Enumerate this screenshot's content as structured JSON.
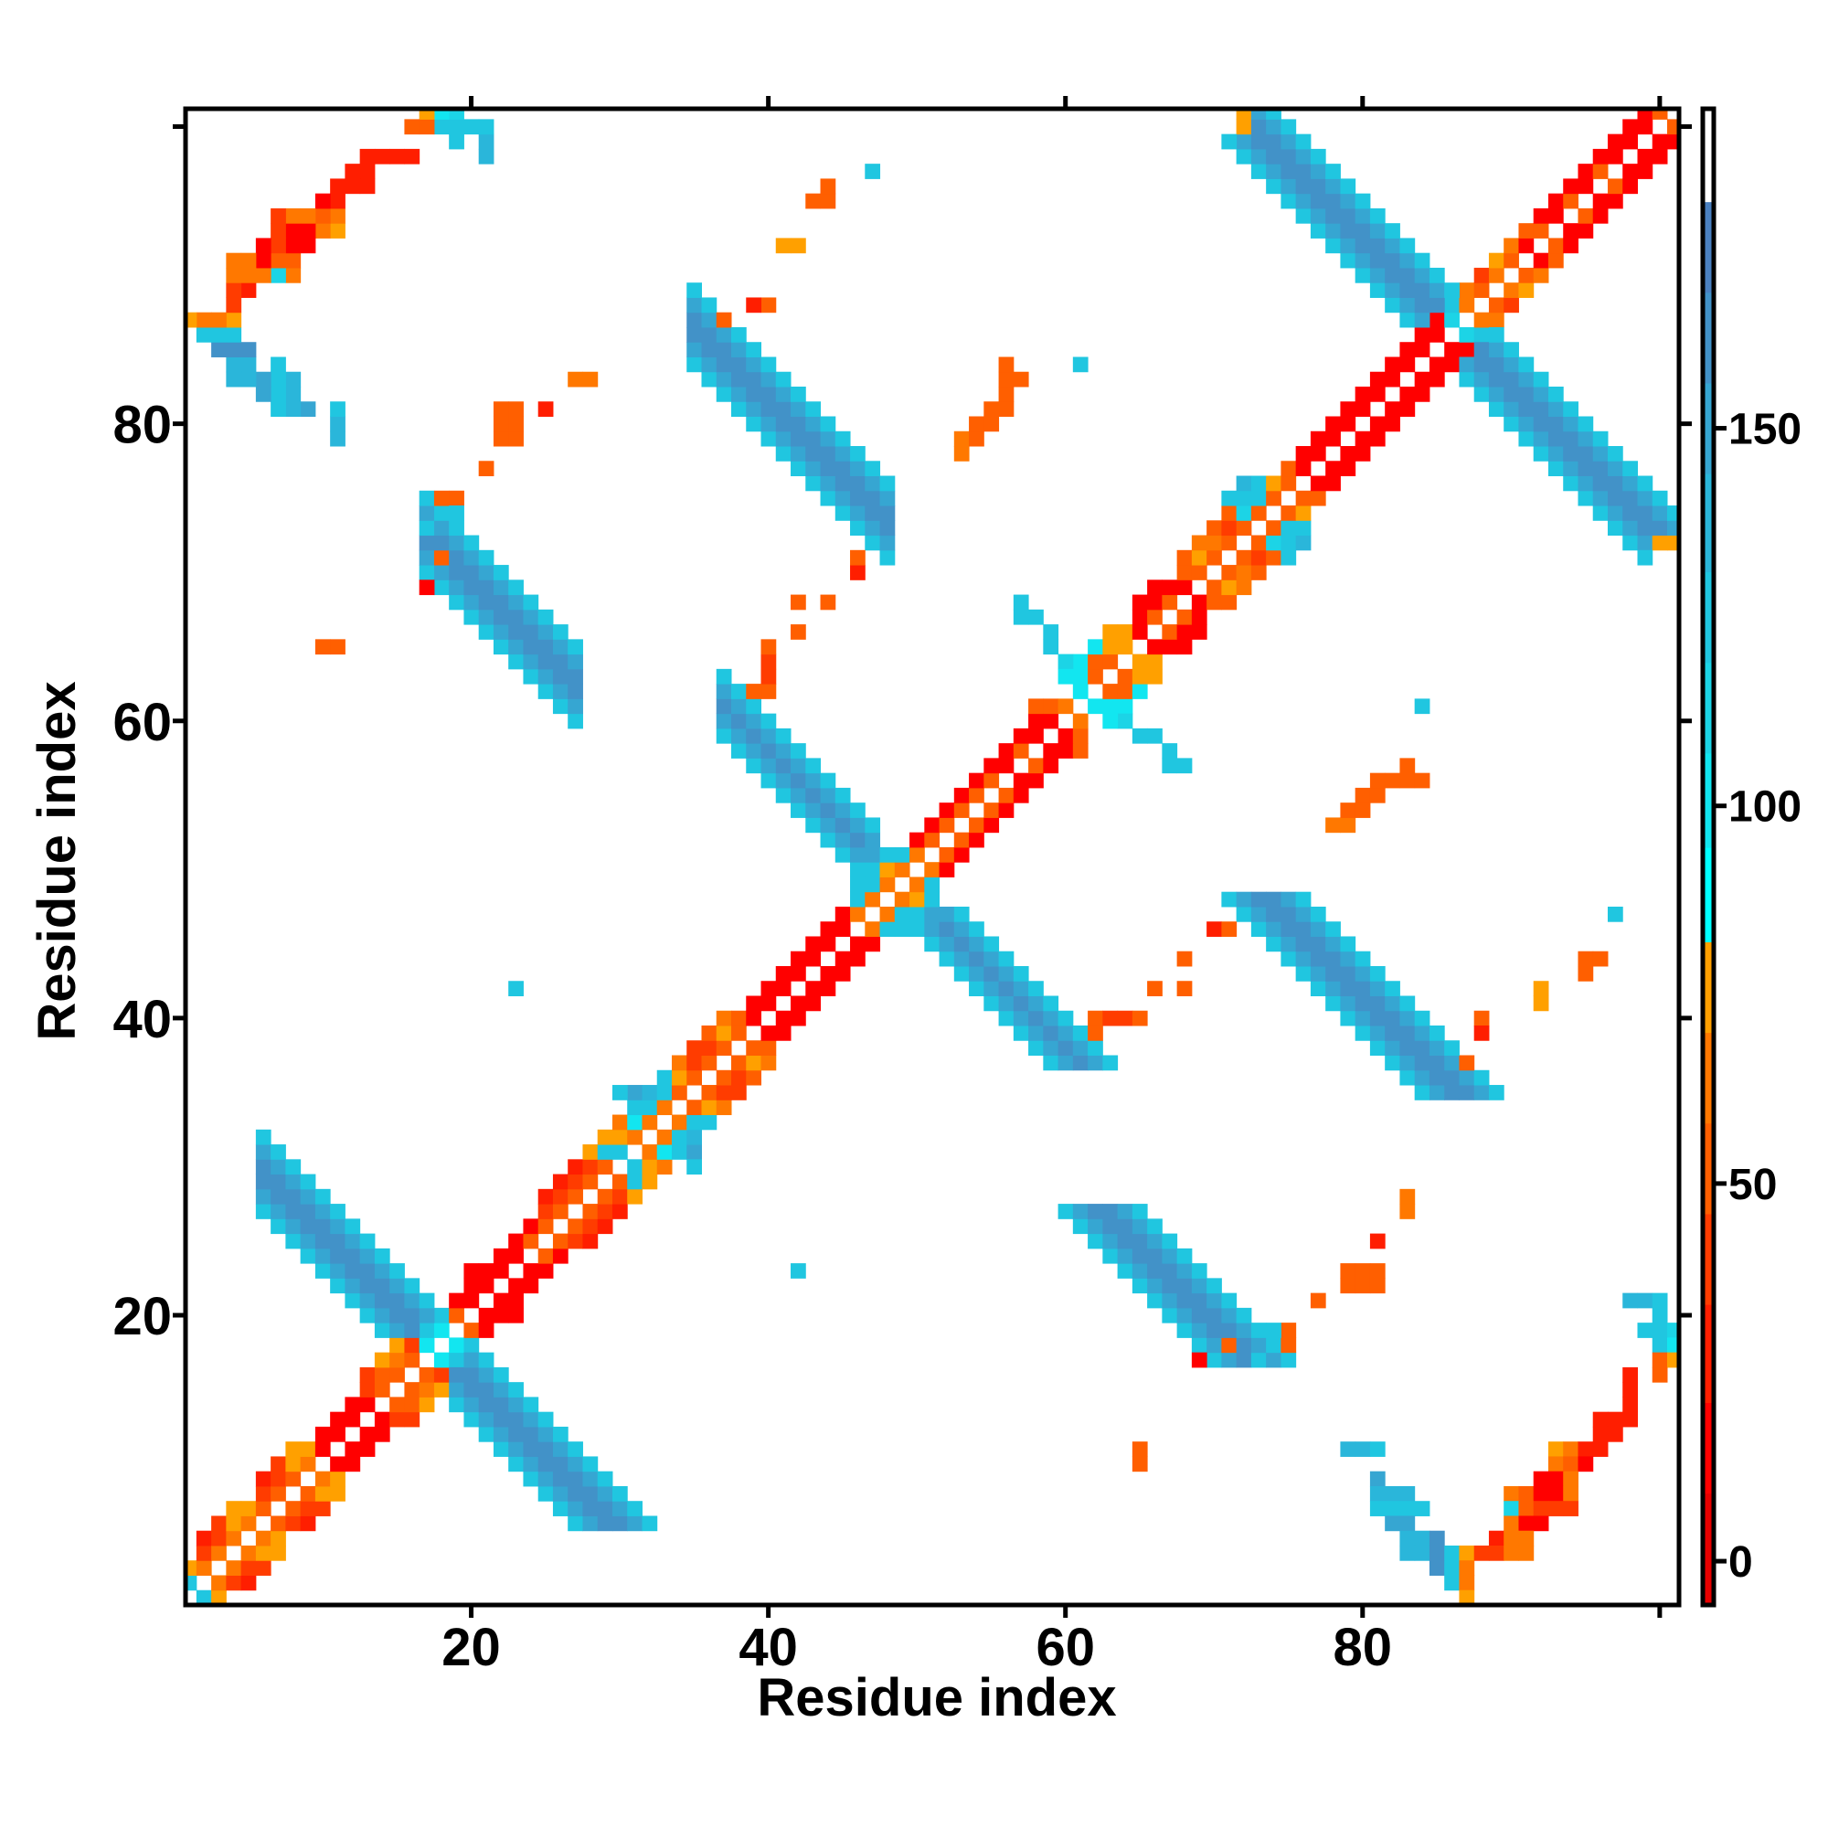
{
  "chart_data": {
    "type": "heatmap",
    "title": "",
    "xlabel": "Residue index",
    "ylabel": "Residue index",
    "xlim": [
      0.77,
      101.3
    ],
    "ylim": [
      0.5,
      101.2
    ],
    "tick_values": [
      20,
      40,
      60,
      80,
      100
    ],
    "xtick_labels": [
      "20",
      "40",
      "60",
      "80"
    ],
    "ytick_labels": [
      "20",
      "40",
      "60",
      "80"
    ],
    "grid": false,
    "symmetric": true,
    "colorbar": {
      "range": [
        -5.8,
        192.3
      ],
      "ticks": [
        0,
        50,
        100,
        150
      ],
      "labels": [
        "0",
        "50",
        "100",
        "150"
      ],
      "placement": "right",
      "bands": [
        [
          -5.8,
          9,
          "#e80000"
        ],
        [
          9,
          21,
          "#ff0000"
        ],
        [
          21,
          34,
          "#ff1e00"
        ],
        [
          34,
          46,
          "#ff3c00"
        ],
        [
          46,
          58,
          "#ff5f00"
        ],
        [
          58,
          70,
          "#ff7800"
        ],
        [
          70,
          82,
          "#ffa000"
        ],
        [
          82,
          94.5,
          "#00ffff"
        ],
        [
          94.5,
          107,
          "#12e6f0"
        ],
        [
          107,
          119,
          "#1cd4e6"
        ],
        [
          119,
          131,
          "#20c6e0"
        ],
        [
          131,
          144,
          "#2ab6da"
        ],
        [
          144,
          156,
          "#36a6d2"
        ],
        [
          156,
          168,
          "#4292c8"
        ],
        [
          168,
          180,
          "#4a80c0"
        ],
        [
          180,
          192.3,
          "#ffffff"
        ]
      ]
    },
    "diagonal": [
      [
        1,
        [
          120,
          70
        ]
      ],
      [
        2,
        [
          60,
          45,
          25
        ]
      ],
      [
        3,
        [
          60,
          45,
          45
        ]
      ],
      [
        4,
        [
          60,
          70,
          70
        ]
      ],
      [
        5,
        [
          60,
          70
        ]
      ],
      [
        6,
        [
          55,
          45,
          30
        ]
      ],
      [
        7,
        [
          55,
          45,
          45
        ]
      ],
      [
        8,
        [
          55,
          70,
          70
        ]
      ],
      [
        9,
        [
          60,
          70
        ]
      ],
      [
        10,
        [
          15,
          20
        ]
      ],
      [
        11,
        [
          15,
          20
        ]
      ],
      [
        12,
        [
          15,
          20
        ]
      ],
      [
        13,
        [
          15,
          40,
          40
        ]
      ],
      [
        14,
        [
          50,
          55,
          70
        ]
      ],
      [
        15,
        [
          55,
          65,
          70
        ]
      ],
      [
        16,
        [
          55,
          45
        ]
      ],
      [
        17,
        [
          100,
          120
        ]
      ],
      [
        18,
        [
          100,
          120
        ]
      ],
      [
        19,
        [
          55,
          15
        ]
      ],
      [
        20,
        [
          10,
          15,
          20
        ]
      ],
      [
        21,
        [
          10,
          15
        ]
      ],
      [
        22,
        [
          10,
          10
        ]
      ],
      [
        23,
        [
          10,
          15
        ]
      ],
      [
        24,
        [
          55,
          20
        ]
      ],
      [
        25,
        [
          55,
          45,
          30
        ]
      ],
      [
        26,
        [
          55,
          45,
          30
        ]
      ],
      [
        27,
        [
          55,
          45,
          25
        ]
      ],
      [
        28,
        [
          55,
          45,
          70
        ]
      ],
      [
        29,
        [
          55,
          120,
          70
        ]
      ],
      [
        30,
        [
          120,
          70,
          60
        ]
      ],
      [
        31,
        [
          60,
          100,
          120,
          150
        ]
      ],
      [
        32,
        [
          60,
          120,
          140
        ]
      ],
      [
        33,
        [
          60,
          125,
          125
        ]
      ],
      [
        34,
        [
          55,
          70,
          60
        ]
      ],
      [
        35,
        [
          55,
          45,
          45
        ]
      ],
      [
        36,
        [
          55,
          45,
          55
        ]
      ],
      [
        37,
        [
          55,
          70,
          60
        ]
      ],
      [
        38,
        [
          55,
          55
        ]
      ],
      [
        39,
        [
          10,
          15
        ]
      ],
      [
        40,
        [
          10,
          15
        ]
      ],
      [
        41,
        [
          10,
          15
        ]
      ],
      [
        42,
        [
          10,
          15
        ]
      ],
      [
        43,
        [
          10,
          15
        ]
      ],
      [
        44,
        [
          10,
          15
        ]
      ],
      [
        45,
        [
          10,
          15
        ]
      ],
      [
        46,
        [
          60,
          120,
          125
        ]
      ],
      [
        47,
        [
          60,
          125,
          130,
          150
        ]
      ],
      [
        48,
        [
          60,
          70,
          120
        ]
      ],
      [
        49,
        [
          60,
          120
        ]
      ],
      [
        50,
        [
          60,
          20
        ]
      ],
      [
        51,
        [
          55,
          15
        ]
      ],
      [
        52,
        [
          55,
          15
        ]
      ],
      [
        53,
        [
          55,
          15
        ]
      ],
      [
        54,
        [
          55,
          15
        ]
      ],
      [
        55,
        [
          55,
          15
        ]
      ],
      [
        56,
        [
          15,
          15
        ]
      ],
      [
        57,
        [
          55,
          15
        ]
      ],
      [
        58,
        [
          15,
          20,
          55
        ]
      ],
      [
        59,
        [
          15,
          55
        ]
      ],
      [
        60,
        [
          60
        ]
      ],
      [
        61,
        [
          120,
          100,
          100
        ]
      ],
      [
        62,
        [
          55,
          55,
          100
        ]
      ],
      [
        63,
        [
          55,
          70,
          70
        ]
      ],
      [
        64,
        [
          70,
          70
        ]
      ],
      [
        65,
        [
          10,
          15,
          15
        ]
      ],
      [
        66,
        [
          55,
          15,
          15
        ]
      ],
      [
        67,
        [
          55,
          15
        ]
      ],
      [
        68,
        [
          15,
          55,
          55
        ]
      ],
      [
        69,
        [
          55,
          70,
          65
        ]
      ],
      [
        70,
        [
          55,
          60,
          55
        ]
      ],
      [
        71,
        [
          55,
          45,
          55,
          120
        ]
      ],
      [
        72,
        [
          55,
          110,
          130,
          140
        ]
      ],
      [
        73,
        [
          55,
          120,
          120
        ]
      ],
      [
        74,
        [
          55,
          70
        ]
      ],
      [
        75,
        [
          55,
          55
        ]
      ],
      [
        76,
        [
          15,
          15
        ]
      ],
      [
        77,
        [
          10,
          15
        ]
      ],
      [
        78,
        [
          10,
          15
        ]
      ],
      [
        79,
        [
          10,
          15
        ]
      ],
      [
        80,
        [
          10,
          15
        ]
      ],
      [
        81,
        [
          10,
          15
        ]
      ],
      [
        82,
        [
          10,
          15
        ]
      ],
      [
        83,
        [
          10,
          15
        ]
      ],
      [
        84,
        [
          10,
          15
        ]
      ],
      [
        85,
        [
          10,
          15
        ]
      ],
      [
        86,
        [
          110,
          120
        ]
      ],
      [
        87,
        [
          60,
          60
        ]
      ],
      [
        88,
        [
          55,
          45
        ]
      ],
      [
        89,
        [
          60,
          70
        ]
      ],
      [
        90,
        [
          55,
          60
        ]
      ],
      [
        91,
        [
          15,
          55
        ]
      ],
      [
        92,
        [
          55,
          15
        ]
      ],
      [
        93,
        [
          15,
          20
        ]
      ],
      [
        94,
        [
          55,
          15
        ]
      ],
      [
        95,
        [
          15,
          20
        ]
      ],
      [
        96,
        [
          55,
          15
        ]
      ],
      [
        97,
        [
          15,
          20
        ]
      ],
      [
        98,
        [
          15,
          20
        ]
      ],
      [
        99,
        [
          15,
          20
        ]
      ],
      [
        100,
        [
          55
        ]
      ]
    ],
    "sheets": [
      {
        "sum": [
          33,
          38
        ],
        "y": [
          6,
          17
        ],
        "edge": 130,
        "mid": 148,
        "core": 160
      },
      {
        "sum": [
          96,
          100
        ],
        "y": [
          37,
          47
        ],
        "edge": 130,
        "mid": 148,
        "core": 160
      },
      {
        "sum": [
          119,
          124
        ],
        "y": [
          35,
          48
        ],
        "edge": 130,
        "mid": 148,
        "core": 160
      },
      {
        "sum": [
          87,
          92
        ],
        "y": [
          17,
          27
        ],
        "edge": 130,
        "mid": 148,
        "core": 160
      },
      {
        "sum": [
          170,
          175
        ],
        "y": [
          72,
          87
        ],
        "edge": 130,
        "mid": 148,
        "core": 160
      }
    ],
    "cells": [
      [
        79,
        23,
        50
      ],
      [
        80,
        23,
        50
      ],
      [
        81,
        23,
        50
      ],
      [
        77,
        21,
        55
      ],
      [
        98,
        21,
        140
      ],
      [
        99,
        21,
        135
      ],
      [
        100,
        21,
        125
      ],
      [
        100,
        20,
        120
      ],
      [
        99,
        19,
        120
      ],
      [
        100,
        19,
        120
      ],
      [
        101,
        19,
        110
      ],
      [
        100,
        18,
        120
      ],
      [
        101,
        18,
        100
      ],
      [
        100,
        17,
        55
      ],
      [
        101,
        17,
        70
      ],
      [
        98,
        16,
        25
      ],
      [
        100,
        16,
        50
      ],
      [
        98,
        15,
        25
      ],
      [
        98,
        14,
        25
      ],
      [
        96,
        13,
        25
      ],
      [
        97,
        13,
        25
      ],
      [
        98,
        13,
        25
      ],
      [
        96,
        12,
        25
      ],
      [
        97,
        12,
        25
      ],
      [
        93,
        11,
        70
      ],
      [
        94,
        11,
        60
      ],
      [
        95,
        11,
        25
      ],
      [
        96,
        11,
        25
      ],
      [
        79,
        11,
        135
      ],
      [
        80,
        11,
        135
      ],
      [
        81,
        11,
        125
      ],
      [
        93,
        10,
        60
      ],
      [
        94,
        10,
        55
      ],
      [
        95,
        10,
        20
      ],
      [
        81,
        9,
        155
      ],
      [
        92,
        9,
        20
      ],
      [
        93,
        9,
        20
      ],
      [
        94,
        9,
        60
      ],
      [
        81,
        8,
        135
      ],
      [
        82,
        8,
        135
      ],
      [
        83,
        8,
        135
      ],
      [
        90,
        8,
        60
      ],
      [
        91,
        8,
        55
      ],
      [
        92,
        8,
        20
      ],
      [
        93,
        8,
        20
      ],
      [
        94,
        8,
        60
      ],
      [
        81,
        7,
        130
      ],
      [
        82,
        7,
        130
      ],
      [
        83,
        7,
        130
      ],
      [
        84,
        7,
        125
      ],
      [
        90,
        7,
        115
      ],
      [
        91,
        7,
        55
      ],
      [
        92,
        7,
        40
      ],
      [
        93,
        7,
        40
      ],
      [
        94,
        7,
        40
      ],
      [
        82,
        6,
        155
      ],
      [
        83,
        6,
        155
      ],
      [
        90,
        6,
        60
      ],
      [
        91,
        6,
        20
      ],
      [
        92,
        6,
        20
      ],
      [
        83,
        5,
        140
      ],
      [
        84,
        5,
        140
      ],
      [
        85,
        5,
        160
      ],
      [
        89,
        5,
        25
      ],
      [
        90,
        5,
        60
      ],
      [
        91,
        5,
        60
      ],
      [
        83,
        4,
        140
      ],
      [
        84,
        4,
        140
      ],
      [
        85,
        4,
        160
      ],
      [
        86,
        4,
        125
      ],
      [
        87,
        4,
        72
      ],
      [
        88,
        4,
        45
      ],
      [
        89,
        4,
        45
      ],
      [
        90,
        4,
        60
      ],
      [
        91,
        4,
        60
      ],
      [
        85,
        3,
        160
      ],
      [
        86,
        3,
        125
      ],
      [
        87,
        3,
        60
      ],
      [
        86,
        2,
        120
      ],
      [
        87,
        2,
        60
      ],
      [
        87,
        1,
        72
      ],
      [
        70,
        46,
        25
      ],
      [
        71,
        46,
        50
      ],
      [
        68,
        44,
        55
      ],
      [
        66,
        42,
        55
      ],
      [
        68,
        42,
        55
      ],
      [
        62,
        40,
        55
      ],
      [
        63,
        40,
        45
      ],
      [
        64,
        40,
        45
      ],
      [
        65,
        40,
        50
      ],
      [
        62,
        39,
        50
      ],
      [
        88,
        40,
        55
      ],
      [
        88,
        39,
        25
      ],
      [
        87,
        37,
        55
      ],
      [
        92,
        42,
        72
      ],
      [
        92,
        41,
        72
      ],
      [
        95,
        43,
        55
      ],
      [
        95,
        44,
        55
      ],
      [
        96,
        44,
        55
      ],
      [
        97,
        47,
        120
      ],
      [
        84,
        61,
        125
      ],
      [
        78,
        53,
        60
      ],
      [
        79,
        53,
        60
      ],
      [
        79,
        54,
        55
      ],
      [
        80,
        54,
        55
      ],
      [
        80,
        55,
        55
      ],
      [
        81,
        55,
        55
      ],
      [
        81,
        56,
        55
      ],
      [
        82,
        56,
        50
      ],
      [
        83,
        56,
        55
      ],
      [
        84,
        56,
        55
      ],
      [
        83,
        57,
        55
      ],
      [
        67,
        58,
        130
      ],
      [
        67,
        57,
        130
      ],
      [
        68,
        57,
        130
      ],
      [
        65,
        59,
        125
      ],
      [
        66,
        59,
        125
      ],
      [
        64,
        60,
        110
      ],
      [
        63,
        60,
        100
      ],
      [
        62,
        61,
        100
      ],
      [
        69,
        17,
        20
      ],
      [
        71,
        18,
        50
      ],
      [
        73,
        17,
        120
      ],
      [
        75,
        18,
        55
      ],
      [
        75,
        19,
        55
      ],
      [
        74,
        19,
        130
      ],
      [
        79,
        22,
        50
      ],
      [
        80,
        22,
        50
      ],
      [
        81,
        22,
        50
      ],
      [
        81,
        25,
        30
      ],
      [
        83,
        28,
        60
      ],
      [
        83,
        27,
        60
      ],
      [
        65,
        11,
        55
      ],
      [
        65,
        10,
        55
      ],
      [
        42,
        23,
        120
      ],
      [
        32,
        6,
        120
      ],
      [
        35,
        30,
        120
      ],
      [
        99,
        71,
        120
      ],
      [
        100,
        72,
        72
      ],
      [
        101,
        72,
        72
      ]
    ]
  }
}
